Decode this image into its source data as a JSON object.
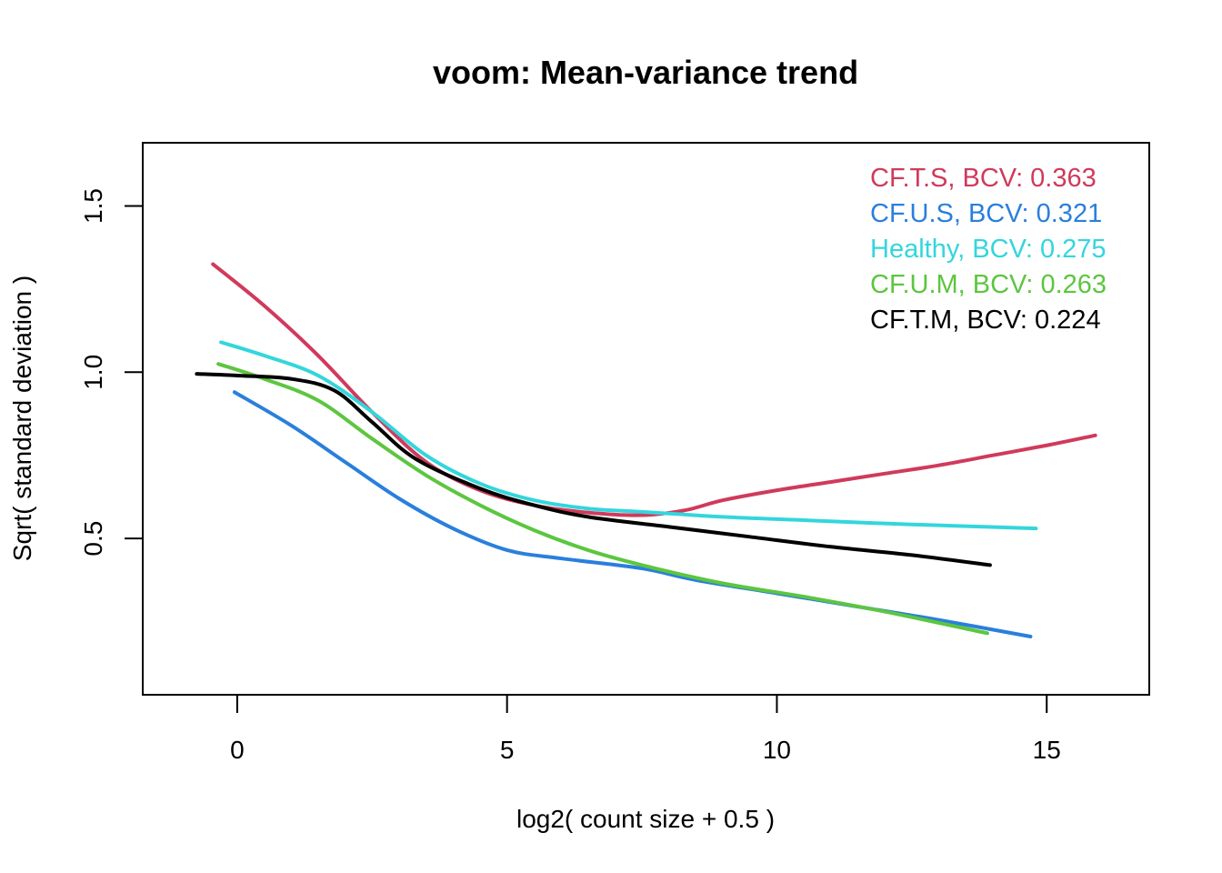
{
  "chart_data": {
    "type": "line",
    "title": "voom: Mean-variance trend",
    "xlabel": "log2( count size + 0.5 )",
    "ylabel": "Sqrt( standard deviation )",
    "xlim": [
      -1.75,
      16.9
    ],
    "ylim": [
      0.03,
      1.69
    ],
    "x_ticks": [
      0,
      5,
      10,
      15
    ],
    "y_ticks": [
      0.5,
      1.0,
      1.5
    ],
    "x_tick_labels": [
      "0",
      "5",
      "10",
      "15"
    ],
    "y_tick_labels": [
      "0.5",
      "1.0",
      "1.5"
    ],
    "grid": false,
    "legend_position": "top-right",
    "series": [
      {
        "name": "CF.T.S, BCV: 0.363",
        "color": "#d03a5b",
        "points": [
          [
            -0.45,
            1.325
          ],
          [
            0.5,
            1.2
          ],
          [
            1.5,
            1.05
          ],
          [
            2.5,
            0.88
          ],
          [
            3.5,
            0.73
          ],
          [
            4.5,
            0.645
          ],
          [
            5.5,
            0.6
          ],
          [
            6.5,
            0.578
          ],
          [
            7.5,
            0.57
          ],
          [
            8.3,
            0.585
          ],
          [
            9,
            0.615
          ],
          [
            10,
            0.645
          ],
          [
            11,
            0.67
          ],
          [
            12,
            0.695
          ],
          [
            13,
            0.72
          ],
          [
            14,
            0.75
          ],
          [
            15,
            0.78
          ],
          [
            15.9,
            0.81
          ]
        ]
      },
      {
        "name": "CF.U.S, BCV: 0.321",
        "color": "#2a7fdc",
        "points": [
          [
            -0.05,
            0.94
          ],
          [
            1,
            0.84
          ],
          [
            2,
            0.73
          ],
          [
            3,
            0.62
          ],
          [
            4,
            0.53
          ],
          [
            5,
            0.465
          ],
          [
            6,
            0.44
          ],
          [
            7.5,
            0.41
          ],
          [
            8.5,
            0.375
          ],
          [
            10,
            0.335
          ],
          [
            11.5,
            0.295
          ],
          [
            13,
            0.255
          ],
          [
            14.7,
            0.205
          ]
        ]
      },
      {
        "name": "Healthy, BCV: 0.275",
        "color": "#33d6dc",
        "points": [
          [
            -0.3,
            1.09
          ],
          [
            0.5,
            1.05
          ],
          [
            1.5,
            0.99
          ],
          [
            2.5,
            0.88
          ],
          [
            3.5,
            0.75
          ],
          [
            4.5,
            0.665
          ],
          [
            5.5,
            0.615
          ],
          [
            6.5,
            0.59
          ],
          [
            7.5,
            0.58
          ],
          [
            9,
            0.565
          ],
          [
            10.5,
            0.555
          ],
          [
            12,
            0.545
          ],
          [
            13.5,
            0.537
          ],
          [
            14.8,
            0.53
          ]
        ]
      },
      {
        "name": "CF.U.M, BCV: 0.263",
        "color": "#5cc63f",
        "points": [
          [
            -0.35,
            1.025
          ],
          [
            0.5,
            0.98
          ],
          [
            1.5,
            0.915
          ],
          [
            2.5,
            0.8
          ],
          [
            3.5,
            0.69
          ],
          [
            4.5,
            0.6
          ],
          [
            5.5,
            0.525
          ],
          [
            6.5,
            0.465
          ],
          [
            7.5,
            0.42
          ],
          [
            9,
            0.365
          ],
          [
            10.5,
            0.325
          ],
          [
            12,
            0.28
          ],
          [
            13.9,
            0.215
          ]
        ]
      },
      {
        "name": "CF.T.M, BCV: 0.224",
        "color": "#000000",
        "points": [
          [
            -0.75,
            0.995
          ],
          [
            0,
            0.99
          ],
          [
            1,
            0.98
          ],
          [
            1.8,
            0.945
          ],
          [
            2.5,
            0.85
          ],
          [
            3.3,
            0.74
          ],
          [
            4.5,
            0.65
          ],
          [
            5.5,
            0.6
          ],
          [
            6.5,
            0.565
          ],
          [
            8,
            0.535
          ],
          [
            9.5,
            0.505
          ],
          [
            11,
            0.475
          ],
          [
            12.5,
            0.45
          ],
          [
            13.95,
            0.42
          ]
        ]
      }
    ]
  }
}
